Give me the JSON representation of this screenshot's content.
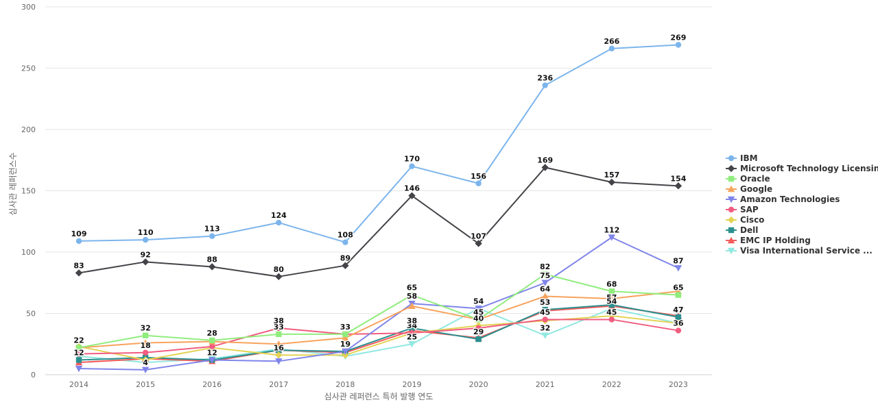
{
  "chart_data": {
    "type": "line",
    "title": "",
    "xlabel": "심사관 레퍼런스 특허 발행 연도",
    "ylabel": "심사관 레퍼런스수",
    "x": [
      2014,
      2015,
      2016,
      2017,
      2018,
      2019,
      2020,
      2021,
      2022,
      2023
    ],
    "ylim": [
      0,
      300
    ],
    "yticks": [
      0,
      50,
      100,
      150,
      200,
      250,
      300
    ],
    "grid": true,
    "legend_position": "right",
    "series": [
      {
        "name": "IBM",
        "color": "#7cb5ec",
        "marker": "circle",
        "values": [
          109,
          110,
          113,
          124,
          108,
          170,
          156,
          236,
          266,
          269
        ]
      },
      {
        "name": "Microsoft Technology Licensing",
        "color": "#434348",
        "marker": "diamond",
        "values": [
          83,
          92,
          88,
          80,
          89,
          146,
          107,
          169,
          157,
          154
        ]
      },
      {
        "name": "Oracle",
        "color": "#90ed7d",
        "marker": "square",
        "values": [
          22,
          32,
          28,
          33,
          33,
          65,
          45,
          82,
          68,
          65
        ]
      },
      {
        "name": "Google",
        "color": "#f7a35c",
        "marker": "triangle",
        "values": [
          22,
          26,
          27,
          25,
          30,
          56,
          45,
          64,
          62,
          68
        ]
      },
      {
        "name": "Amazon Technologies",
        "color": "#8085e9",
        "marker": "triangle-down",
        "values": [
          5,
          4,
          12,
          11,
          19,
          58,
          54,
          75,
          112,
          87
        ]
      },
      {
        "name": "SAP",
        "color": "#f15c80",
        "marker": "circle",
        "values": [
          17,
          18,
          23,
          38,
          33,
          34,
          38,
          45,
          45,
          36
        ]
      },
      {
        "name": "Cisco",
        "color": "#e4d354",
        "marker": "diamond",
        "values": [
          23,
          12,
          22,
          16,
          16,
          34,
          40,
          44,
          48,
          42
        ]
      },
      {
        "name": "Dell",
        "color": "#2b908f",
        "marker": "square",
        "values": [
          12,
          14,
          12,
          20,
          19,
          38,
          29,
          53,
          57,
          47
        ]
      },
      {
        "name": "EMC IP Holding",
        "color": "#f45b5b",
        "marker": "triangle",
        "values": [
          10,
          13,
          11,
          20,
          18,
          36,
          30,
          52,
          56,
          48
        ]
      },
      {
        "name": "Visa International Service ...",
        "color": "#91e8e1",
        "marker": "triangle-down",
        "values": [
          15,
          10,
          13,
          21,
          15,
          25,
          54,
          32,
          54,
          42
        ]
      }
    ],
    "data_labels": [
      {
        "series": 0,
        "points": [
          0,
          1,
          2,
          3,
          4,
          5,
          6,
          7,
          8,
          9
        ]
      },
      {
        "series": 1,
        "points": [
          0,
          1,
          2,
          3,
          4,
          5,
          6,
          7,
          8,
          9
        ]
      },
      {
        "series": 2,
        "points": [
          0,
          1,
          2,
          3,
          4,
          5,
          7,
          8,
          9
        ]
      },
      {
        "series": 3,
        "points": [
          6,
          7
        ]
      },
      {
        "series": 4,
        "points": [
          1,
          4,
          5,
          6,
          7,
          8,
          9
        ]
      },
      {
        "series": 5,
        "points": [
          1,
          3,
          5,
          7,
          8,
          9
        ]
      },
      {
        "series": 6,
        "points": [
          3,
          6
        ]
      },
      {
        "series": 7,
        "points": [
          0,
          2,
          5,
          6,
          7,
          8,
          9
        ]
      },
      {
        "series": 9,
        "points": [
          5,
          7,
          8
        ]
      }
    ]
  }
}
